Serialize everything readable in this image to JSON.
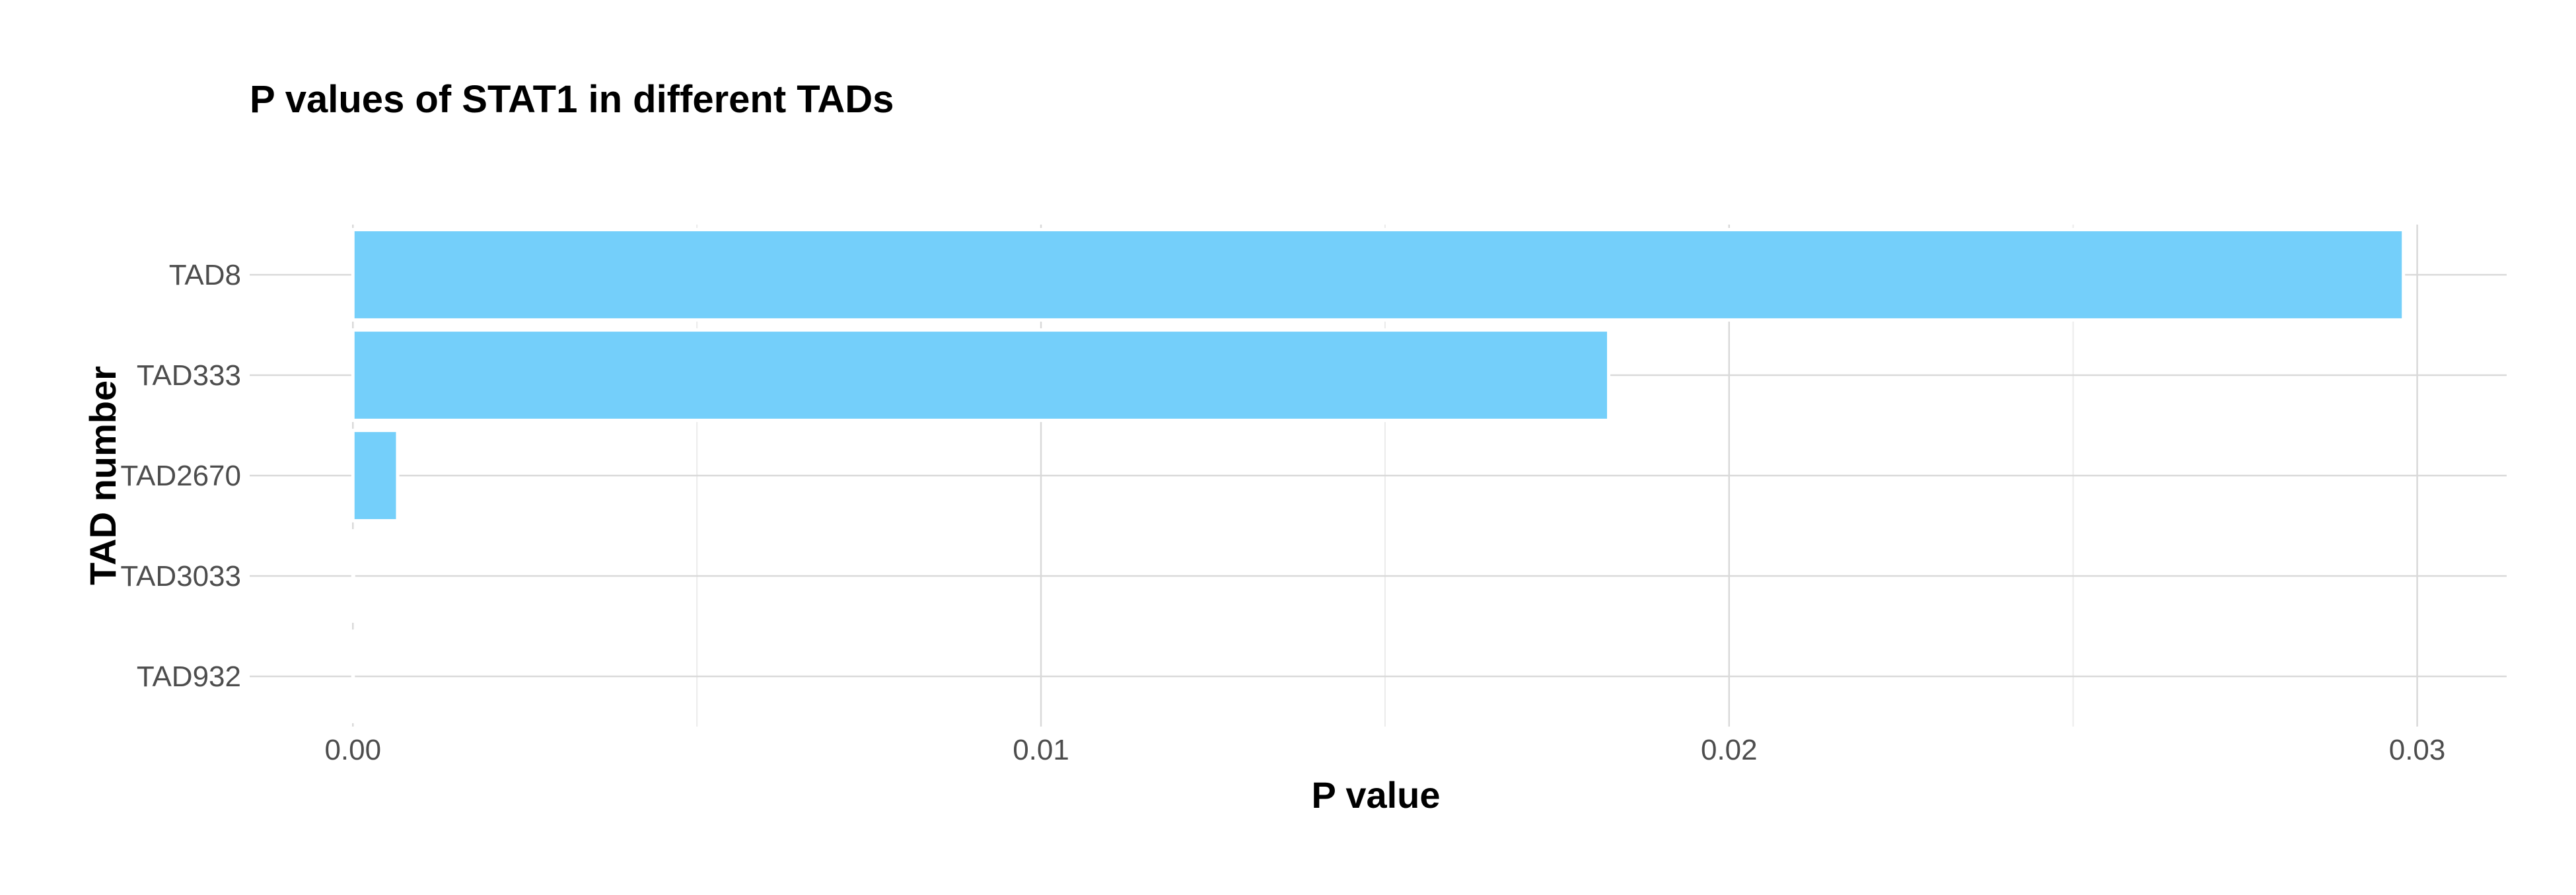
{
  "chart_data": {
    "type": "bar",
    "orientation": "horizontal",
    "title": "P values of STAT1 in different TADs",
    "xlabel": "P value",
    "ylabel": "TAD number",
    "categories": [
      "TAD8",
      "TAD333",
      "TAD2670",
      "TAD3033",
      "TAD932"
    ],
    "values": [
      0.0298,
      0.01825,
      0.00065,
      1e-05,
      5e-06
    ],
    "xlim": [
      -0.0015,
      0.0313
    ],
    "xticks": [
      0.0,
      0.01,
      0.02,
      0.03
    ],
    "xtick_labels": [
      "0.00",
      "0.01",
      "0.02",
      "0.03"
    ],
    "grid": true,
    "legend": "none",
    "colors": {
      "bar_fill": "#74cffa",
      "bar_outline": "#ffffff"
    }
  }
}
